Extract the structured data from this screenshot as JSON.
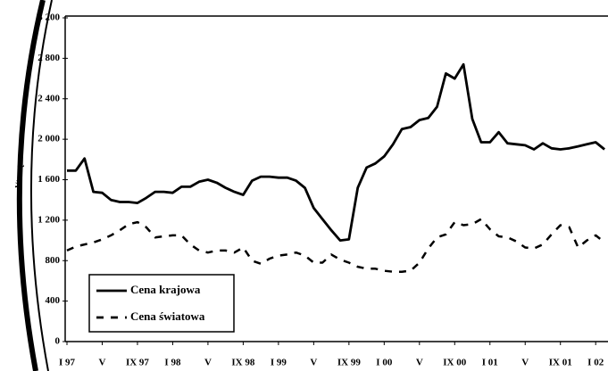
{
  "chart_data": {
    "type": "line",
    "ylabel": "zł/tonę",
    "categories": [
      "I 97",
      null,
      null,
      null,
      "V",
      null,
      null,
      null,
      "IX 97",
      null,
      null,
      null,
      "I 98",
      null,
      null,
      null,
      "V",
      null,
      null,
      null,
      "IX 98",
      null,
      null,
      null,
      "I 99",
      null,
      null,
      null,
      "V",
      null,
      null,
      null,
      "IX 99",
      null,
      null,
      null,
      "I 00",
      null,
      null,
      null,
      "V",
      null,
      null,
      null,
      "IX 00",
      null,
      null,
      null,
      "I 01",
      null,
      null,
      null,
      "V",
      null,
      null,
      null,
      "IX 01",
      null,
      null,
      null,
      "I 02",
      null
    ],
    "series": [
      {
        "name": "Cena krajowa",
        "color": "#000000",
        "dash": "solid",
        "values": [
          1690,
          1690,
          1810,
          1480,
          1470,
          1400,
          1380,
          1380,
          1370,
          1420,
          1480,
          1480,
          1470,
          1530,
          1530,
          1580,
          1600,
          1570,
          1520,
          1480,
          1450,
          1590,
          1630,
          1630,
          1620,
          1620,
          1590,
          1520,
          1320,
          1210,
          1100,
          1000,
          1010,
          1520,
          1720,
          1760,
          1830,
          1950,
          2100,
          2120,
          2190,
          2210,
          2320,
          2650,
          2600,
          2740,
          2200,
          1970,
          1970,
          2070,
          1960,
          1950,
          1940,
          1900,
          1960,
          1910,
          1900,
          1910,
          1930,
          1950,
          1970,
          1900
        ]
      },
      {
        "name": "Cena światowa",
        "color": "#000000",
        "dash": "dashed",
        "values": [
          900,
          940,
          960,
          980,
          1010,
          1050,
          1100,
          1160,
          1180,
          1130,
          1030,
          1040,
          1050,
          1050,
          960,
          900,
          880,
          900,
          900,
          880,
          930,
          800,
          770,
          820,
          850,
          860,
          880,
          850,
          780,
          780,
          860,
          810,
          780,
          740,
          720,
          720,
          700,
          690,
          690,
          700,
          780,
          920,
          1030,
          1060,
          1180,
          1150,
          1160,
          1210,
          1110,
          1040,
          1030,
          990,
          930,
          920,
          960,
          1060,
          1150,
          1130,
          930,
          1000,
          1050,
          980
        ]
      }
    ],
    "ylim": [
      0,
      3200
    ],
    "yticks": [
      0,
      400,
      800,
      {
        "value": 1200,
        "label": "1 200"
      },
      {
        "value": 1600,
        "label": "1 600"
      },
      {
        "value": 2000,
        "label": "2 000"
      },
      {
        "value": 2400,
        "label": "2 400"
      },
      {
        "value": 2800,
        "label": "2 800"
      },
      {
        "value": 3200,
        "label": "3 200"
      }
    ],
    "grid": false,
    "legend": "lower left"
  }
}
